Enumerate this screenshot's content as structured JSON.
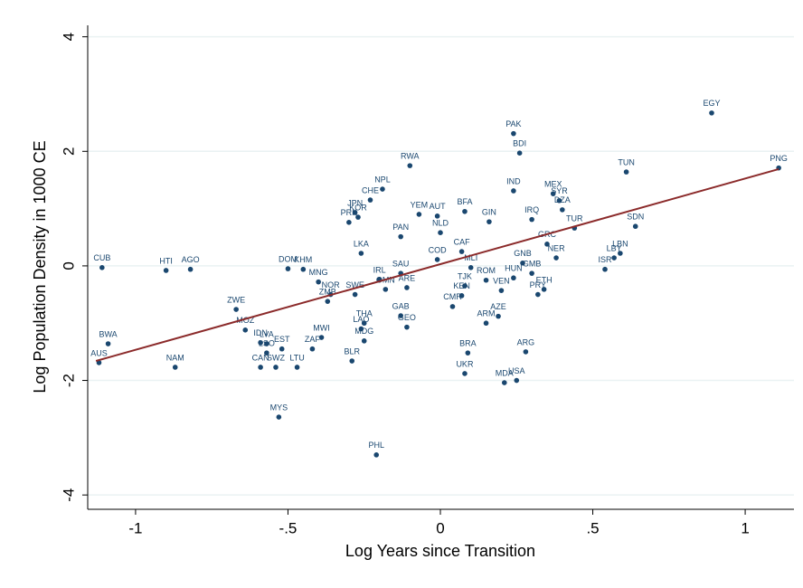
{
  "chart_data": {
    "type": "scatter",
    "x_label": "Log Years since Transition",
    "y_label": "Log Population Density in 1000 CE",
    "xlim": [
      -1.157,
      1.16
    ],
    "ylim": [
      -4.25,
      4.2
    ],
    "xticks": [
      {
        "value": -1,
        "label": "-1"
      },
      {
        "value": -0.5,
        "label": "-.5"
      },
      {
        "value": 0,
        "label": "0"
      },
      {
        "value": 0.5,
        "label": ".5"
      },
      {
        "value": 1,
        "label": "1"
      }
    ],
    "yticks": [
      -4,
      -2,
      0,
      2,
      4
    ],
    "grid": true,
    "color": "#1a476f",
    "fit_color": "#8b2a2a",
    "labels": [
      "CUB",
      "HTI",
      "AGO",
      "EGY",
      "PNG",
      "TUN",
      "PAK",
      "BDI",
      "RWA",
      "NPL",
      "CHE",
      "PRK",
      "KOR",
      "JPN",
      "DOM",
      "KHM",
      "LKA",
      "IRL",
      "OMN",
      "SAU",
      "ARE",
      "MNG",
      "NOR",
      "ZMB",
      "SWE",
      "ZWE",
      "MOZ",
      "BWA",
      "AUS",
      "NAM",
      "IDN",
      "LVA",
      "EST",
      "LSO",
      "CAN",
      "SWZ",
      "LTU",
      "ZAF",
      "MWI",
      "THA",
      "LAO",
      "MDG",
      "BLR",
      "MYS",
      "PHL",
      "GAB",
      "GEO",
      "CMR",
      "KEN",
      "ARM",
      "AZE",
      "BRA",
      "UKR",
      "ARG",
      "MDA",
      "USA",
      "ISR",
      "LBY",
      "LBN",
      "SDN",
      "TUR",
      "NER",
      "GRC",
      "ETH",
      "PRY",
      "DZA",
      "SYR",
      "MEX",
      "IND",
      "IRQ",
      "BFA",
      "GIN",
      "AUT",
      "YEM",
      "NLD",
      "PAN",
      "CAF",
      "COD",
      "MLI",
      "TJK",
      "VEN",
      "HUN",
      "GNB",
      "GMB",
      "ROM"
    ],
    "x": [
      -1.11,
      -0.9,
      -0.82,
      0.89,
      1.11,
      0.61,
      0.24,
      0.26,
      -0.1,
      -0.19,
      -0.23,
      -0.3,
      -0.27,
      -0.28,
      -0.5,
      -0.45,
      -0.26,
      -0.2,
      -0.18,
      -0.13,
      -0.11,
      -0.4,
      -0.36,
      -0.37,
      -0.28,
      -0.67,
      -0.64,
      -1.09,
      -1.12,
      -0.87,
      -0.59,
      -0.57,
      -0.52,
      -0.57,
      -0.59,
      -0.54,
      -0.47,
      -0.42,
      -0.39,
      -0.25,
      -0.26,
      -0.25,
      -0.29,
      -0.53,
      -0.21,
      -0.13,
      -0.11,
      0.04,
      0.07,
      0.15,
      0.19,
      0.09,
      0.08,
      0.28,
      0.21,
      0.25,
      0.54,
      0.57,
      0.59,
      0.64,
      0.44,
      0.38,
      0.35,
      0.34,
      0.32,
      0.4,
      0.39,
      0.37,
      0.24,
      0.3,
      0.08,
      0.16,
      -0.01,
      -0.07,
      0.0,
      -0.13,
      0.07,
      -0.01,
      0.1,
      0.08,
      0.2,
      0.24,
      0.27,
      0.3,
      0.15
    ],
    "values": [
      -0.03,
      -0.08,
      -0.06,
      2.67,
      1.71,
      1.64,
      2.31,
      1.97,
      1.75,
      1.34,
      1.15,
      0.76,
      0.85,
      0.93,
      -0.05,
      -0.06,
      0.22,
      -0.24,
      -0.41,
      -0.13,
      -0.38,
      -0.28,
      -0.5,
      -0.62,
      -0.5,
      -0.76,
      -1.12,
      -1.36,
      -1.69,
      -1.77,
      -1.34,
      -1.36,
      -1.45,
      -1.52,
      -1.77,
      -1.77,
      -1.77,
      -1.45,
      -1.25,
      -1.0,
      -1.1,
      -1.31,
      -1.66,
      -2.64,
      -3.3,
      -0.87,
      -1.07,
      -0.71,
      -0.52,
      -1.0,
      -0.88,
      -1.52,
      -1.88,
      -1.5,
      -2.04,
      -2.0,
      -0.06,
      0.14,
      0.22,
      0.69,
      0.66,
      0.14,
      0.38,
      -0.41,
      -0.5,
      0.98,
      1.14,
      1.26,
      1.31,
      0.81,
      0.95,
      0.77,
      0.87,
      0.9,
      0.58,
      0.51,
      0.25,
      0.11,
      -0.03,
      -0.35,
      -0.43,
      -0.21,
      0.05,
      -0.13,
      -0.25
    ],
    "fit": {
      "x": [
        -1.13,
        1.11
      ],
      "y": [
        -1.66,
        1.69
      ]
    }
  }
}
